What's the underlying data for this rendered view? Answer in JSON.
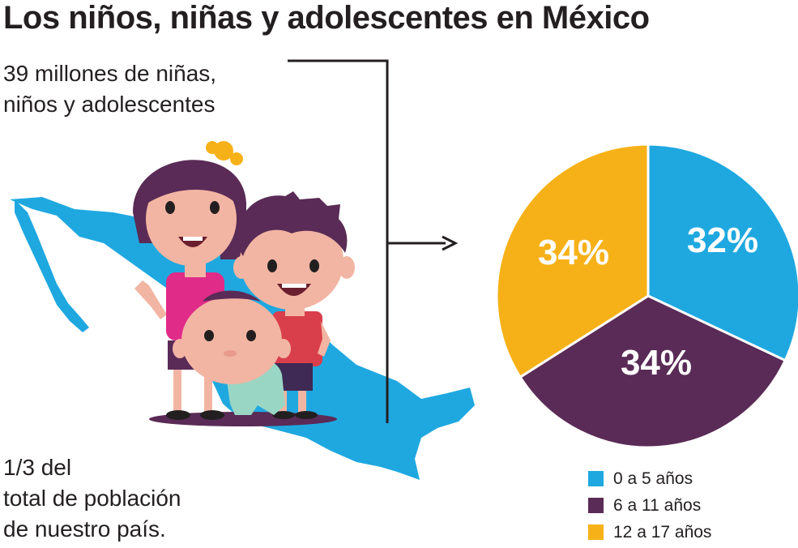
{
  "header": {
    "title": "Los niños, niñas y adolescentes en México"
  },
  "callout_top": {
    "lines": [
      "39 millones de niñas,",
      "niños y adolescentes"
    ]
  },
  "callout_bottom": {
    "lines": [
      "1/3 del",
      "total de población",
      "de nuestro país."
    ]
  },
  "colors": {
    "blue": "#1fa8e0",
    "purple": "#5a2b56",
    "yellow": "#f7b118",
    "text": "#231f20"
  },
  "illustration": {
    "map": "mexico-map",
    "figures": [
      "girl",
      "boy",
      "baby"
    ]
  },
  "chart_data": {
    "type": "pie",
    "categories": [
      "0 a 5 años",
      "6 a 11 años",
      "12 a 17 años"
    ],
    "values": [
      32,
      34,
      34
    ],
    "labels": [
      "32%",
      "34%",
      "34%"
    ],
    "colors": [
      "#1fa8e0",
      "#5a2b56",
      "#f7b118"
    ],
    "legend_position": "bottom"
  }
}
